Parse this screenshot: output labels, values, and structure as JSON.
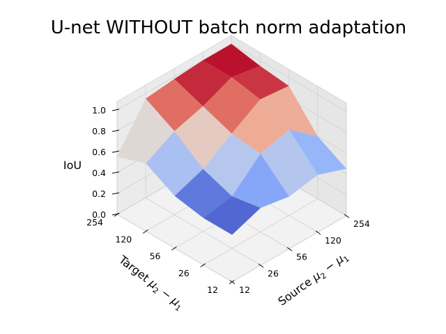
{
  "chart_data": {
    "type": "surface3d",
    "title": "U-net WITHOUT batch norm adaptation",
    "xlabel": "Target μ₂ − μ₁",
    "ylabel": "Source μ₂ − μ₁",
    "zlabel": "IoU",
    "x_ticks": [
      "12",
      "26",
      "56",
      "120",
      "254"
    ],
    "y_ticks": [
      "12",
      "26",
      "56",
      "120",
      "254"
    ],
    "z_ticks": [
      "0.0",
      "0.2",
      "0.4",
      "0.6",
      "0.8",
      "1.0"
    ],
    "zlim": [
      0,
      1
    ],
    "colormap": "coolwarm",
    "rows_target": [
      "12",
      "26",
      "56",
      "120",
      "254"
    ],
    "cols_source": [
      "12",
      "26",
      "56",
      "120",
      "254"
    ],
    "iou": [
      [
        0.45,
        0.55,
        0.5,
        0.55,
        0.45
      ],
      [
        0.45,
        0.5,
        0.75,
        0.82,
        0.6
      ],
      [
        0.5,
        0.6,
        0.78,
        0.95,
        0.92
      ],
      [
        0.65,
        0.8,
        0.88,
        1.0,
        0.95
      ],
      [
        0.55,
        0.95,
        0.98,
        1.0,
        1.0
      ]
    ]
  }
}
